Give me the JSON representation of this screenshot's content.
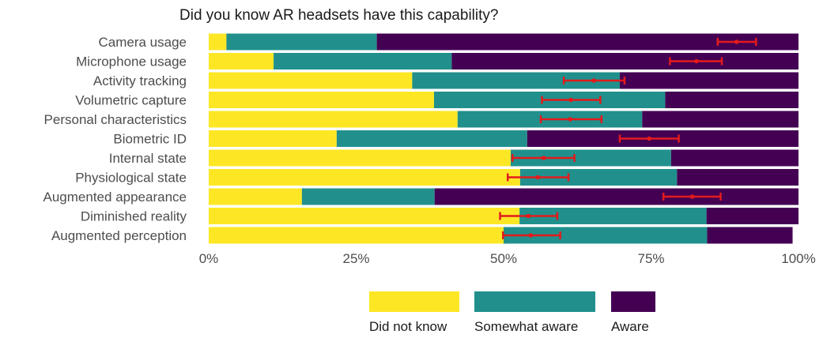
{
  "chart_data": {
    "type": "bar",
    "stacked": true,
    "orientation": "horizontal",
    "title": "Did you know AR headsets have this capability?",
    "categories": [
      "Camera usage",
      "Microphone usage",
      "Activity tracking",
      "Volumetric capture",
      "Personal characteristics",
      "Biometric ID",
      "Internal state",
      "Physiological state",
      "Augmented appearance",
      "Diminished reality",
      "Augmented perception"
    ],
    "series": [
      {
        "name": "Did not know",
        "color": "#fde725",
        "values": [
          3,
          11,
          34.5,
          38.2,
          42.2,
          21.7,
          51.2,
          52.8,
          15.8,
          52.7,
          50
        ]
      },
      {
        "name": "Somewhat aware",
        "color": "#21908c",
        "values": [
          25.5,
          30.2,
          35.2,
          39.2,
          31.3,
          32.3,
          27.2,
          26.6,
          22.5,
          31.7,
          34.5
        ]
      },
      {
        "name": "Aware",
        "color": "#440154",
        "values": [
          71.5,
          58.8,
          30.3,
          22.6,
          26.5,
          46,
          21.6,
          20.6,
          61.7,
          15.6,
          14.5
        ]
      }
    ],
    "error_bars": {
      "color": "#e31a1c",
      "center": [
        89.5,
        82.7,
        65.3,
        61.4,
        61.3,
        74.7,
        56.8,
        55.8,
        82,
        54.2,
        54.6
      ],
      "low": [
        86.3,
        78.2,
        60.2,
        56.5,
        56.3,
        69.7,
        51.5,
        50.7,
        77.1,
        49.4,
        49.9
      ],
      "high": [
        92.8,
        87,
        70.5,
        66.4,
        66.6,
        79.7,
        62,
        61,
        86.8,
        59.1,
        59.6
      ]
    },
    "xlim": [
      0,
      100
    ],
    "x_ticks": [
      0,
      25,
      50,
      75,
      100
    ],
    "x_tick_labels": [
      "0%",
      "25%",
      "50%",
      "75%",
      "100%"
    ],
    "xlabel": "",
    "ylabel": "",
    "grid": false,
    "legend_position": "bottom"
  }
}
